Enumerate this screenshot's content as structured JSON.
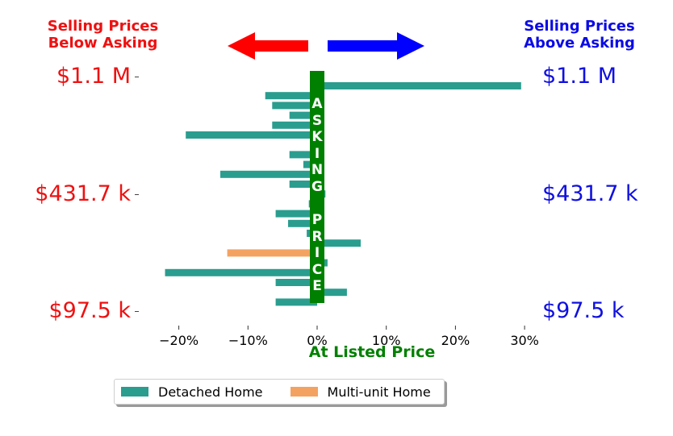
{
  "header": {
    "below_asking": [
      "Selling Prices",
      "Below Asking"
    ],
    "above_asking": [
      "Selling Prices",
      "Above Asking"
    ],
    "below_color": "#ff0000",
    "above_color": "#0000ff",
    "arrow_left_icon": "left-arrow",
    "arrow_right_icon": "right-arrow"
  },
  "center_label": {
    "word1": "ASKING",
    "word2": "PRICE",
    "color": "#008000"
  },
  "price_labels": {
    "top": "$1.1 M",
    "middle": "$431.7 k",
    "bottom": "$97.5 k"
  },
  "chart_data": {
    "type": "bar",
    "orientation": "horizontal",
    "xlabel": "At Listed Price",
    "xlim": [
      -25,
      30
    ],
    "xticks": [
      -20,
      -10,
      0,
      10,
      20,
      30
    ],
    "xtick_labels": [
      "−20%",
      "−10%",
      "0%",
      "10%",
      "20%",
      "30%"
    ],
    "legend": [
      {
        "name": "Detached Home",
        "color": "#2a9d8f"
      },
      {
        "name": "Multi-unit Home",
        "color": "#f4a261"
      }
    ],
    "legend_position": "bottom",
    "grid": false,
    "bars": [
      {
        "value": 29.5,
        "type": "Detached Home"
      },
      {
        "value": -7.5,
        "type": "Detached Home"
      },
      {
        "value": -6.5,
        "type": "Detached Home"
      },
      {
        "value": -4.0,
        "type": "Detached Home"
      },
      {
        "value": -6.5,
        "type": "Detached Home"
      },
      {
        "value": -19.0,
        "type": "Detached Home"
      },
      {
        "value": -1.0,
        "type": "Detached Home"
      },
      {
        "value": -4.0,
        "type": "Detached Home"
      },
      {
        "value": -2.0,
        "type": "Detached Home"
      },
      {
        "value": -14.0,
        "type": "Detached Home"
      },
      {
        "value": -4.0,
        "type": "Detached Home"
      },
      {
        "value": 1.2,
        "type": "Detached Home"
      },
      {
        "value": -1.2,
        "type": "Detached Home"
      },
      {
        "value": -6.0,
        "type": "Detached Home"
      },
      {
        "value": -4.2,
        "type": "Detached Home"
      },
      {
        "value": -1.5,
        "type": "Detached Home"
      },
      {
        "value": 6.3,
        "type": "Detached Home"
      },
      {
        "value": -13.0,
        "type": "Multi-unit Home"
      },
      {
        "value": 1.5,
        "type": "Detached Home"
      },
      {
        "value": -22.0,
        "type": "Detached Home"
      },
      {
        "value": -6.0,
        "type": "Detached Home"
      },
      {
        "value": 4.3,
        "type": "Detached Home"
      },
      {
        "value": -6.0,
        "type": "Detached Home"
      }
    ]
  }
}
